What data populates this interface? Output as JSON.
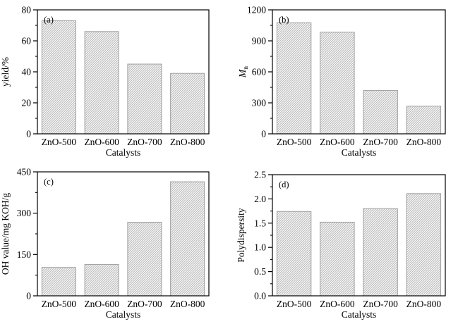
{
  "figure": {
    "background": "#ffffff",
    "text_color": "#000000",
    "axis_color": "#000000",
    "bar_edge_color": "#9f9f9f",
    "bar_hatch_color": "#b0b0b0",
    "bar_fill_background": "#ffffff"
  },
  "chart_data": [
    {
      "id": "a",
      "type": "bar",
      "panel_label": "(a)",
      "ylabel": "yield/%",
      "xlabel": "Catalysts",
      "categories": [
        "ZnO-500",
        "ZnO-600",
        "ZnO-700",
        "ZnO-800"
      ],
      "values": [
        73,
        66,
        45,
        39
      ],
      "ylim": [
        0,
        80
      ],
      "yticks": [
        0,
        20,
        40,
        60,
        80
      ],
      "minor_tick_step": 10,
      "tick_decimals": 0,
      "grid": false,
      "legend": "none"
    },
    {
      "id": "b",
      "type": "bar",
      "panel_label": "(b)",
      "ylabel": "Mn",
      "ylabel_parts": {
        "main": "M",
        "main_italic": true,
        "sub": "n"
      },
      "xlabel": "Catalysts",
      "categories": [
        "ZnO-500",
        "ZnO-600",
        "ZnO-700",
        "ZnO-800"
      ],
      "values": [
        1075,
        985,
        420,
        268
      ],
      "ylim": [
        0,
        1200
      ],
      "yticks": [
        0,
        300,
        600,
        900,
        1200
      ],
      "minor_tick_step": 150,
      "tick_decimals": 0,
      "grid": false,
      "legend": "none"
    },
    {
      "id": "c",
      "type": "bar",
      "panel_label": "(c)",
      "ylabel": "OH value/mg KOH/g",
      "xlabel": "Catalysts",
      "categories": [
        "ZnO-500",
        "ZnO-600",
        "ZnO-700",
        "ZnO-800"
      ],
      "values": [
        103,
        114,
        267,
        414
      ],
      "ylim": [
        0,
        450
      ],
      "yticks": [
        0,
        150,
        300,
        450
      ],
      "minor_tick_step": 75,
      "tick_decimals": 0,
      "grid": false,
      "legend": "none"
    },
    {
      "id": "d",
      "type": "bar",
      "panel_label": "(d)",
      "ylabel": "Polydispersity",
      "xlabel": "Catalysts",
      "categories": [
        "ZnO-500",
        "ZnO-600",
        "ZnO-700",
        "ZnO-800"
      ],
      "values": [
        1.74,
        1.52,
        1.8,
        2.11
      ],
      "ylim": [
        0,
        2.5
      ],
      "yticks": [
        0,
        0.5,
        1.0,
        1.5,
        2.0,
        2.5
      ],
      "minor_tick_step": 0.25,
      "tick_decimals": 1,
      "grid": false,
      "legend": "none"
    }
  ]
}
